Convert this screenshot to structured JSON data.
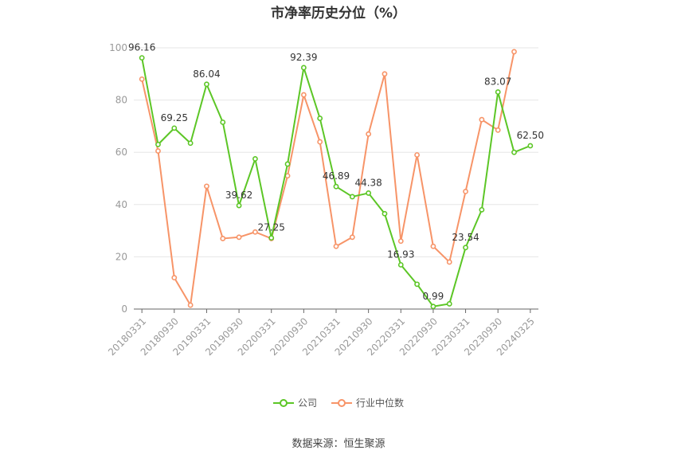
{
  "chart_data": {
    "type": "line",
    "title": "市净率历史分位（%）",
    "xlabel": "",
    "ylabel": "",
    "ylim": [
      0,
      100
    ],
    "yticks": [
      0,
      20,
      40,
      60,
      80,
      100
    ],
    "x": [
      "20180331",
      "20180630",
      "20180930",
      "20181231",
      "20190331",
      "20190630",
      "20190930",
      "20191231",
      "20200331",
      "20200630",
      "20200930",
      "20201231",
      "20210331",
      "20210630",
      "20210930",
      "20211231",
      "20220331",
      "20220630",
      "20220930",
      "20221231",
      "20230331",
      "20230630",
      "20230930",
      "20231231",
      "20240325"
    ],
    "xtick_labels": [
      "20180331",
      "20180930",
      "20190331",
      "20190930",
      "20200331",
      "20200930",
      "20210331",
      "20210930",
      "20220331",
      "20220930",
      "20230331",
      "20230930",
      "20240325"
    ],
    "series": [
      {
        "name": "公司",
        "color": "#5cc626",
        "values": [
          96.16,
          63,
          69.25,
          63.5,
          86.04,
          71.5,
          39.62,
          57.5,
          27.25,
          55.5,
          92.39,
          73,
          46.89,
          43,
          44.38,
          36.5,
          16.93,
          9.5,
          0.99,
          2,
          23.54,
          38,
          83.07,
          60,
          62.5
        ],
        "labels": {
          "0": "96.16",
          "2": "69.25",
          "4": "86.04",
          "6": "39.62",
          "8": "27.25",
          "10": "92.39",
          "12": "46.89",
          "14": "44.38",
          "16": "16.93",
          "18": "0.99",
          "20": "23.54",
          "22": "83.07",
          "24": "62.50"
        }
      },
      {
        "name": "行业中位数",
        "color": "#f79468",
        "values": [
          88,
          60.5,
          12,
          1.5,
          47,
          27,
          27.5,
          29.5,
          27,
          51,
          82,
          64,
          24,
          27.5,
          67,
          90,
          26,
          59,
          24,
          18,
          45,
          72.5,
          68.5,
          98.5,
          null
        ],
        "labels": {}
      }
    ],
    "grid": true,
    "legend": "bottom"
  },
  "source": "数据来源：恒生聚源"
}
